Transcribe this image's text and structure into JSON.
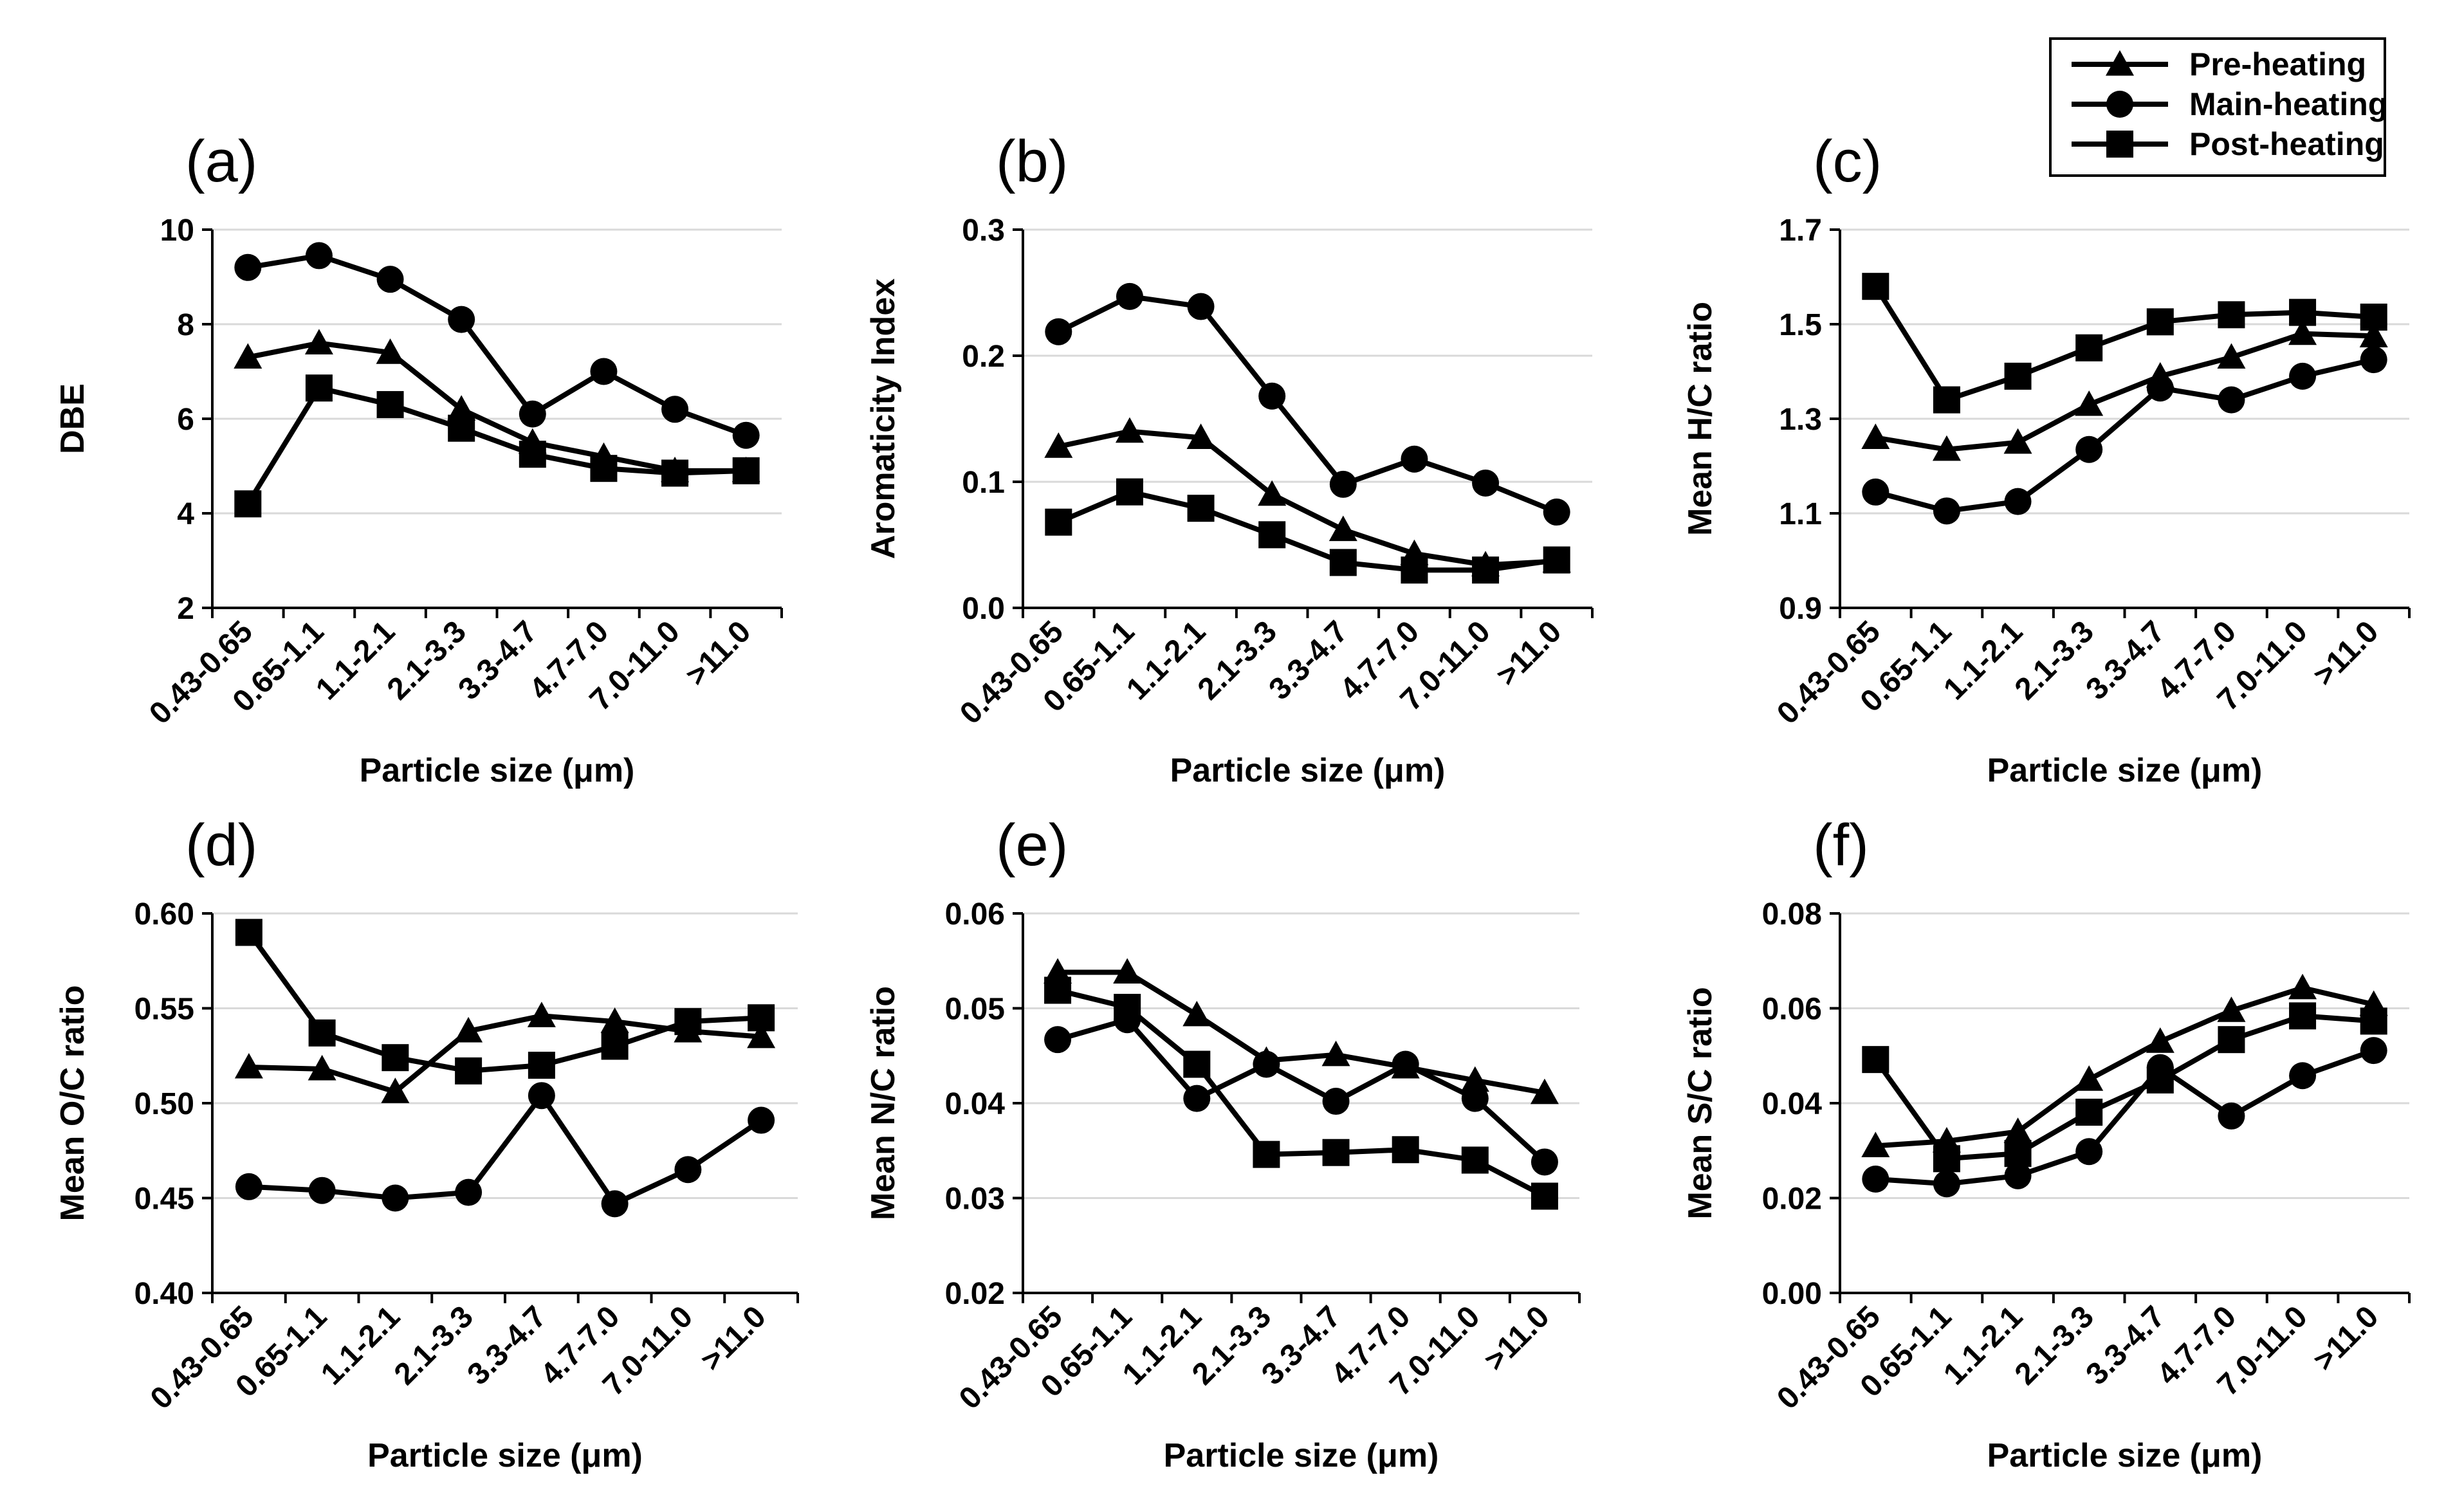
{
  "figure": {
    "legend": {
      "entries": [
        {
          "label": "Pre-heating",
          "marker": "triangle"
        },
        {
          "label": "Main-heating",
          "marker": "circle"
        },
        {
          "label": "Post-heating",
          "marker": "square"
        }
      ]
    }
  },
  "chart_data": [
    {
      "panel": "(a)",
      "type": "line",
      "categories": [
        "0.43-0.65",
        "0.65-1.1",
        "1.1-2.1",
        "2.1-3.3",
        "3.3-4.7",
        "4.7-7.0",
        "7.0-11.0",
        ">11.0"
      ],
      "xlabel": "Particle size (μm)",
      "ylabel": "DBE",
      "ylim": [
        2,
        10
      ],
      "yticks": [
        "2",
        "4",
        "6",
        "8",
        "10"
      ],
      "grid": true,
      "series": [
        {
          "name": "Pre-heating",
          "values": [
            7.3,
            7.6,
            7.4,
            6.2,
            5.5,
            5.2,
            4.9,
            4.9
          ]
        },
        {
          "name": "Main-heating",
          "values": [
            9.2,
            9.45,
            8.95,
            8.1,
            6.1,
            7.0,
            6.2,
            5.65
          ]
        },
        {
          "name": "Post-heating",
          "values": [
            4.2,
            6.65,
            6.3,
            5.8,
            5.25,
            4.95,
            4.85,
            4.9
          ]
        }
      ]
    },
    {
      "panel": "(b)",
      "type": "line",
      "categories": [
        "0.43-0.65",
        "0.65-1.1",
        "1.1-2.1",
        "2.1-3.3",
        "3.3-4.7",
        "4.7-7.0",
        "7.0-11.0",
        ">11.0"
      ],
      "xlabel": "Particle size (μm)",
      "ylabel": "Aromaticity Index",
      "ylim": [
        0.0,
        0.3
      ],
      "yticks": [
        "0.0",
        "0.1",
        "0.2",
        "0.3"
      ],
      "grid": true,
      "series": [
        {
          "name": "Pre-heating",
          "values": [
            0.128,
            0.14,
            0.135,
            0.09,
            0.062,
            0.043,
            0.034,
            0.037
          ]
        },
        {
          "name": "Main-heating",
          "values": [
            0.219,
            0.247,
            0.239,
            0.168,
            0.098,
            0.118,
            0.099,
            0.076
          ]
        },
        {
          "name": "Post-heating",
          "values": [
            0.068,
            0.092,
            0.079,
            0.058,
            0.036,
            0.03,
            0.03,
            0.038
          ]
        }
      ]
    },
    {
      "panel": "(c)",
      "type": "line",
      "categories": [
        "0.43-0.65",
        "0.65-1.1",
        "1.1-2.1",
        "2.1-3.3",
        "3.3-4.7",
        "4.7-7.0",
        "7.0-11.0",
        ">11.0"
      ],
      "xlabel": "Particle size (μm)",
      "ylabel": "Mean H/C ratio",
      "ylim": [
        0.9,
        1.7
      ],
      "yticks": [
        "0.9",
        "1.1",
        "1.3",
        "1.5",
        "1.7"
      ],
      "grid": true,
      "series": [
        {
          "name": "Pre-heating",
          "values": [
            1.26,
            1.235,
            1.25,
            1.33,
            1.39,
            1.43,
            1.48,
            1.475
          ]
        },
        {
          "name": "Main-heating",
          "values": [
            1.145,
            1.105,
            1.125,
            1.235,
            1.365,
            1.34,
            1.39,
            1.425
          ]
        },
        {
          "name": "Post-heating",
          "values": [
            1.58,
            1.34,
            1.39,
            1.45,
            1.505,
            1.52,
            1.525,
            1.515
          ]
        }
      ]
    },
    {
      "panel": "(d)",
      "type": "line",
      "categories": [
        "0.43-0.65",
        "0.65-1.1",
        "1.1-2.1",
        "2.1-3.3",
        "3.3-4.7",
        "4.7-7.0",
        "7.0-11.0",
        ">11.0"
      ],
      "xlabel": "Particle size (μm)",
      "ylabel": "Mean O/C ratio",
      "ylim": [
        0.4,
        0.6
      ],
      "yticks": [
        "0.40",
        "0.45",
        "0.50",
        "0.55",
        "0.60"
      ],
      "grid": true,
      "series": [
        {
          "name": "Pre-heating",
          "values": [
            0.519,
            0.518,
            0.506,
            0.538,
            0.546,
            0.543,
            0.538,
            0.535
          ]
        },
        {
          "name": "Main-heating",
          "values": [
            0.456,
            0.454,
            0.45,
            0.453,
            0.504,
            0.447,
            0.465,
            0.491
          ]
        },
        {
          "name": "Post-heating",
          "values": [
            0.59,
            0.537,
            0.524,
            0.517,
            0.52,
            0.53,
            0.543,
            0.545
          ]
        }
      ]
    },
    {
      "panel": "(e)",
      "type": "line",
      "categories": [
        "0.43-0.65",
        "0.65-1.1",
        "1.1-2.1",
        "2.1-3.3",
        "3.3-4.7",
        "4.7-7.0",
        "7.0-11.0",
        ">11.0"
      ],
      "xlabel": "Particle size (μm)",
      "ylabel": "Mean N/C ratio",
      "ylim": [
        0.02,
        0.06
      ],
      "yticks": [
        "0.02",
        "0.03",
        "0.04",
        "0.05",
        "0.06"
      ],
      "grid": true,
      "series": [
        {
          "name": "Pre-heating",
          "values": [
            0.0538,
            0.0538,
            0.0493,
            0.0445,
            0.0451,
            0.0438,
            0.0424,
            0.0411
          ]
        },
        {
          "name": "Main-heating",
          "values": [
            0.0467,
            0.0488,
            0.0405,
            0.0441,
            0.0402,
            0.0441,
            0.0405,
            0.0338
          ]
        },
        {
          "name": "Post-heating",
          "values": [
            0.0519,
            0.0501,
            0.0441,
            0.0346,
            0.0348,
            0.0351,
            0.034,
            0.0302
          ]
        }
      ]
    },
    {
      "panel": "(f)",
      "type": "line",
      "categories": [
        "0.43-0.65",
        "0.65-1.1",
        "1.1-2.1",
        "2.1-3.3",
        "3.3-4.7",
        "4.7-7.0",
        "7.0-11.0",
        ">11.0"
      ],
      "xlabel": "Particle size (μm)",
      "ylabel": "Mean S/C ratio",
      "ylim": [
        0.0,
        0.08
      ],
      "yticks": [
        "0.00",
        "0.02",
        "0.04",
        "0.06",
        "0.08"
      ],
      "grid": true,
      "series": [
        {
          "name": "Pre-heating",
          "values": [
            0.031,
            0.032,
            0.034,
            0.045,
            0.053,
            0.0595,
            0.0643,
            0.0608
          ]
        },
        {
          "name": "Main-heating",
          "values": [
            0.024,
            0.023,
            0.0247,
            0.0298,
            0.0475,
            0.0373,
            0.0458,
            0.0511
          ]
        },
        {
          "name": "Post-heating",
          "values": [
            0.0492,
            0.0283,
            0.0294,
            0.0381,
            0.0449,
            0.0534,
            0.0584,
            0.0573
          ]
        }
      ]
    }
  ]
}
